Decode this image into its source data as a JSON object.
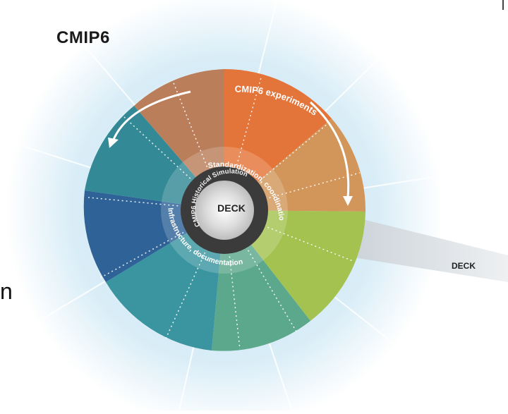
{
  "figure": {
    "title": "CMIP6",
    "ring_experiments_label": "CMIP6 experiments",
    "inner_ring_top": "Standardization, coordination",
    "inner_ring_bottom": "Infrastructure, documentation",
    "core_ring_label": "CMIP6 Historical Simulation",
    "center_label": "DECK",
    "band_label": "DECK",
    "edge_glyph": "n"
  },
  "colors": {
    "glow": "#d7ecf6",
    "orange": "#e06a28",
    "tan": "#c9875a",
    "teal": "#2f8f9a",
    "navy": "#1d4a8c",
    "green": "#9bbf45",
    "core_dark": "#3a3a3a",
    "core_light": "#e4e4e4",
    "band": "#d8dcdf"
  }
}
